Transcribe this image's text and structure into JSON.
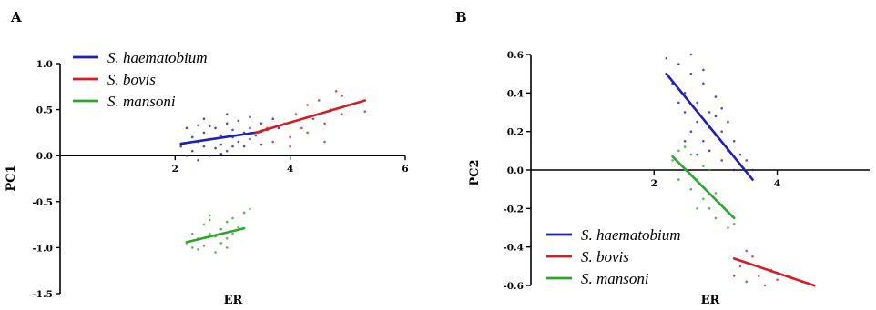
{
  "colors": {
    "haematobium": "#1f1fb4",
    "bovis": "#d21f26",
    "mansoni": "#2fa52f"
  },
  "chart_data": [
    {
      "type": "scatter",
      "panel_label": "A",
      "xlabel": "ER",
      "ylabel": "PC1",
      "xlim": [
        0,
        6
      ],
      "ylim": [
        -1.5,
        1.0
      ],
      "x_ticks": [
        2,
        4,
        6
      ],
      "y_ticks": [
        1.0,
        0.5,
        0.0,
        -0.5,
        -1.0,
        -1.5
      ],
      "x_tick_labels": [
        "2",
        "4",
        "6"
      ],
      "y_tick_labels": [
        "1.0",
        "0.5",
        "0.0",
        "-0.5",
        "-1.0",
        "-1.5"
      ],
      "legend_position": "top-left",
      "series": [
        {
          "name": "S. haematobium",
          "color_key": "haematobium",
          "fit_line": {
            "x": [
              2.1,
              3.5
            ],
            "y": [
              0.13,
              0.26
            ]
          },
          "points": [
            [
              2.1,
              0.1
            ],
            [
              2.2,
              0.3
            ],
            [
              2.3,
              0.05
            ],
            [
              2.3,
              0.2
            ],
            [
              2.4,
              0.15
            ],
            [
              2.4,
              0.33
            ],
            [
              2.5,
              0.1
            ],
            [
              2.5,
              0.25
            ],
            [
              2.6,
              0.0
            ],
            [
              2.6,
              0.18
            ],
            [
              2.7,
              0.3
            ],
            [
              2.7,
              0.08
            ],
            [
              2.8,
              0.22
            ],
            [
              2.8,
              0.12
            ],
            [
              2.9,
              0.35
            ],
            [
              2.9,
              0.05
            ],
            [
              3.0,
              0.2
            ],
            [
              3.0,
              0.28
            ],
            [
              3.1,
              0.15
            ],
            [
              3.1,
              0.38
            ],
            [
              3.2,
              0.1
            ],
            [
              3.2,
              0.25
            ],
            [
              3.3,
              0.3
            ],
            [
              3.3,
              0.18
            ],
            [
              3.4,
              0.22
            ],
            [
              3.5,
              0.35
            ],
            [
              3.5,
              0.12
            ],
            [
              3.6,
              0.28
            ],
            [
              3.7,
              0.4
            ],
            [
              2.2,
              0.0
            ],
            [
              2.5,
              0.4
            ],
            [
              2.9,
              0.45
            ],
            [
              3.3,
              0.42
            ],
            [
              2.4,
              -0.05
            ],
            [
              2.8,
              0.02
            ],
            [
              3.0,
              0.1
            ],
            [
              2.6,
              0.32
            ],
            [
              3.8,
              0.3
            ]
          ]
        },
        {
          "name": "S. bovis",
          "color_key": "bovis",
          "fit_line": {
            "x": [
              3.4,
              5.3
            ],
            "y": [
              0.25,
              0.6
            ]
          },
          "points": [
            [
              3.6,
              0.3
            ],
            [
              3.7,
              0.15
            ],
            [
              3.9,
              0.35
            ],
            [
              4.0,
              0.2
            ],
            [
              4.1,
              0.45
            ],
            [
              4.2,
              0.3
            ],
            [
              4.3,
              0.55
            ],
            [
              4.4,
              0.4
            ],
            [
              4.5,
              0.6
            ],
            [
              4.6,
              0.35
            ],
            [
              4.7,
              0.5
            ],
            [
              4.8,
              0.7
            ],
            [
              4.9,
              0.45
            ],
            [
              5.0,
              0.55
            ],
            [
              5.3,
              0.48
            ],
            [
              4.0,
              0.1
            ],
            [
              4.3,
              0.25
            ],
            [
              4.6,
              0.15
            ],
            [
              4.9,
              0.65
            ]
          ]
        },
        {
          "name": "S. mansoni",
          "color_key": "mansoni",
          "fit_line": {
            "x": [
              2.2,
              3.2
            ],
            "y": [
              -0.94,
              -0.79
            ]
          },
          "points": [
            [
              2.2,
              -0.95
            ],
            [
              2.3,
              -0.85
            ],
            [
              2.3,
              -1.0
            ],
            [
              2.4,
              -0.9
            ],
            [
              2.5,
              -0.75
            ],
            [
              2.5,
              -0.98
            ],
            [
              2.6,
              -0.85
            ],
            [
              2.6,
              -0.7
            ],
            [
              2.7,
              -1.05
            ],
            [
              2.7,
              -0.88
            ],
            [
              2.8,
              -0.8
            ],
            [
              2.8,
              -0.95
            ],
            [
              2.9,
              -0.72
            ],
            [
              2.9,
              -0.9
            ],
            [
              3.0,
              -0.85
            ],
            [
              3.0,
              -0.68
            ],
            [
              3.1,
              -0.78
            ],
            [
              3.2,
              -0.62
            ],
            [
              2.4,
              -1.02
            ],
            [
              2.6,
              -0.65
            ],
            [
              2.9,
              -1.0
            ],
            [
              3.3,
              -0.58
            ]
          ]
        }
      ]
    },
    {
      "type": "scatter",
      "panel_label": "B",
      "xlabel": "ER",
      "ylabel": "PC2",
      "xlim": [
        0,
        5.5
      ],
      "ylim": [
        -0.6,
        0.6
      ],
      "x_ticks": [
        2,
        4
      ],
      "y_ticks": [
        0.6,
        0.4,
        0.2,
        0.0,
        -0.2,
        -0.4,
        -0.6
      ],
      "x_tick_labels": [
        "2",
        "4"
      ],
      "y_tick_labels": [
        "0.6",
        "0.4",
        "0.2",
        "0.0",
        "-0.2",
        "-0.4",
        "-0.6"
      ],
      "legend_position": "bottom-left",
      "series": [
        {
          "name": "S. haematobium",
          "color_key": "haematobium",
          "fit_line": {
            "x": [
              2.2,
              3.6
            ],
            "y": [
              0.5,
              -0.05
            ]
          },
          "points": [
            [
              2.2,
              0.58
            ],
            [
              2.3,
              0.45
            ],
            [
              2.4,
              0.55
            ],
            [
              2.5,
              0.4
            ],
            [
              2.5,
              0.3
            ],
            [
              2.6,
              0.5
            ],
            [
              2.6,
              0.2
            ],
            [
              2.7,
              0.35
            ],
            [
              2.7,
              0.25
            ],
            [
              2.8,
              0.45
            ],
            [
              2.8,
              0.15
            ],
            [
              2.9,
              0.3
            ],
            [
              2.9,
              0.1
            ],
            [
              3.0,
              0.28
            ],
            [
              3.0,
              0.18
            ],
            [
              3.1,
              0.2
            ],
            [
              3.1,
              0.05
            ],
            [
              3.2,
              0.25
            ],
            [
              3.2,
              0.1
            ],
            [
              3.3,
              0.15
            ],
            [
              3.3,
              0.0
            ],
            [
              3.4,
              0.08
            ],
            [
              3.5,
              0.05
            ],
            [
              3.6,
              0.0
            ],
            [
              2.4,
              0.35
            ],
            [
              2.6,
              0.6
            ],
            [
              2.8,
              0.52
            ],
            [
              3.0,
              0.38
            ],
            [
              2.5,
              0.15
            ],
            [
              2.9,
              0.22
            ],
            [
              3.1,
              0.32
            ],
            [
              2.7,
              0.08
            ]
          ]
        },
        {
          "name": "S. bovis",
          "color_key": "bovis",
          "fit_line": {
            "x": [
              3.3,
              4.6
            ],
            "y": [
              -0.46,
              -0.6
            ]
          },
          "points": [
            [
              3.3,
              -0.55
            ],
            [
              3.4,
              -0.5
            ],
            [
              3.5,
              -0.58
            ],
            [
              3.6,
              -0.45
            ],
            [
              3.7,
              -0.55
            ],
            [
              3.8,
              -0.6
            ],
            [
              3.9,
              -0.52
            ],
            [
              4.0,
              -0.57
            ],
            [
              4.2,
              -0.55
            ],
            [
              4.4,
              -0.58
            ],
            [
              4.6,
              -0.6
            ],
            [
              3.5,
              -0.42
            ]
          ]
        },
        {
          "name": "S. mansoni",
          "color_key": "mansoni",
          "fit_line": {
            "x": [
              2.3,
              3.3
            ],
            "y": [
              0.07,
              -0.25
            ]
          },
          "points": [
            [
              2.3,
              0.05
            ],
            [
              2.4,
              0.1
            ],
            [
              2.4,
              -0.05
            ],
            [
              2.5,
              0.0
            ],
            [
              2.6,
              -0.1
            ],
            [
              2.6,
              0.08
            ],
            [
              2.7,
              -0.05
            ],
            [
              2.8,
              -0.15
            ],
            [
              2.8,
              0.02
            ],
            [
              2.9,
              -0.2
            ],
            [
              3.0,
              -0.12
            ],
            [
              3.0,
              -0.25
            ],
            [
              3.1,
              -0.18
            ],
            [
              3.2,
              -0.3
            ],
            [
              2.5,
              0.12
            ],
            [
              2.7,
              -0.2
            ],
            [
              3.3,
              -0.28
            ],
            [
              2.9,
              0.0
            ]
          ]
        }
      ]
    }
  ]
}
